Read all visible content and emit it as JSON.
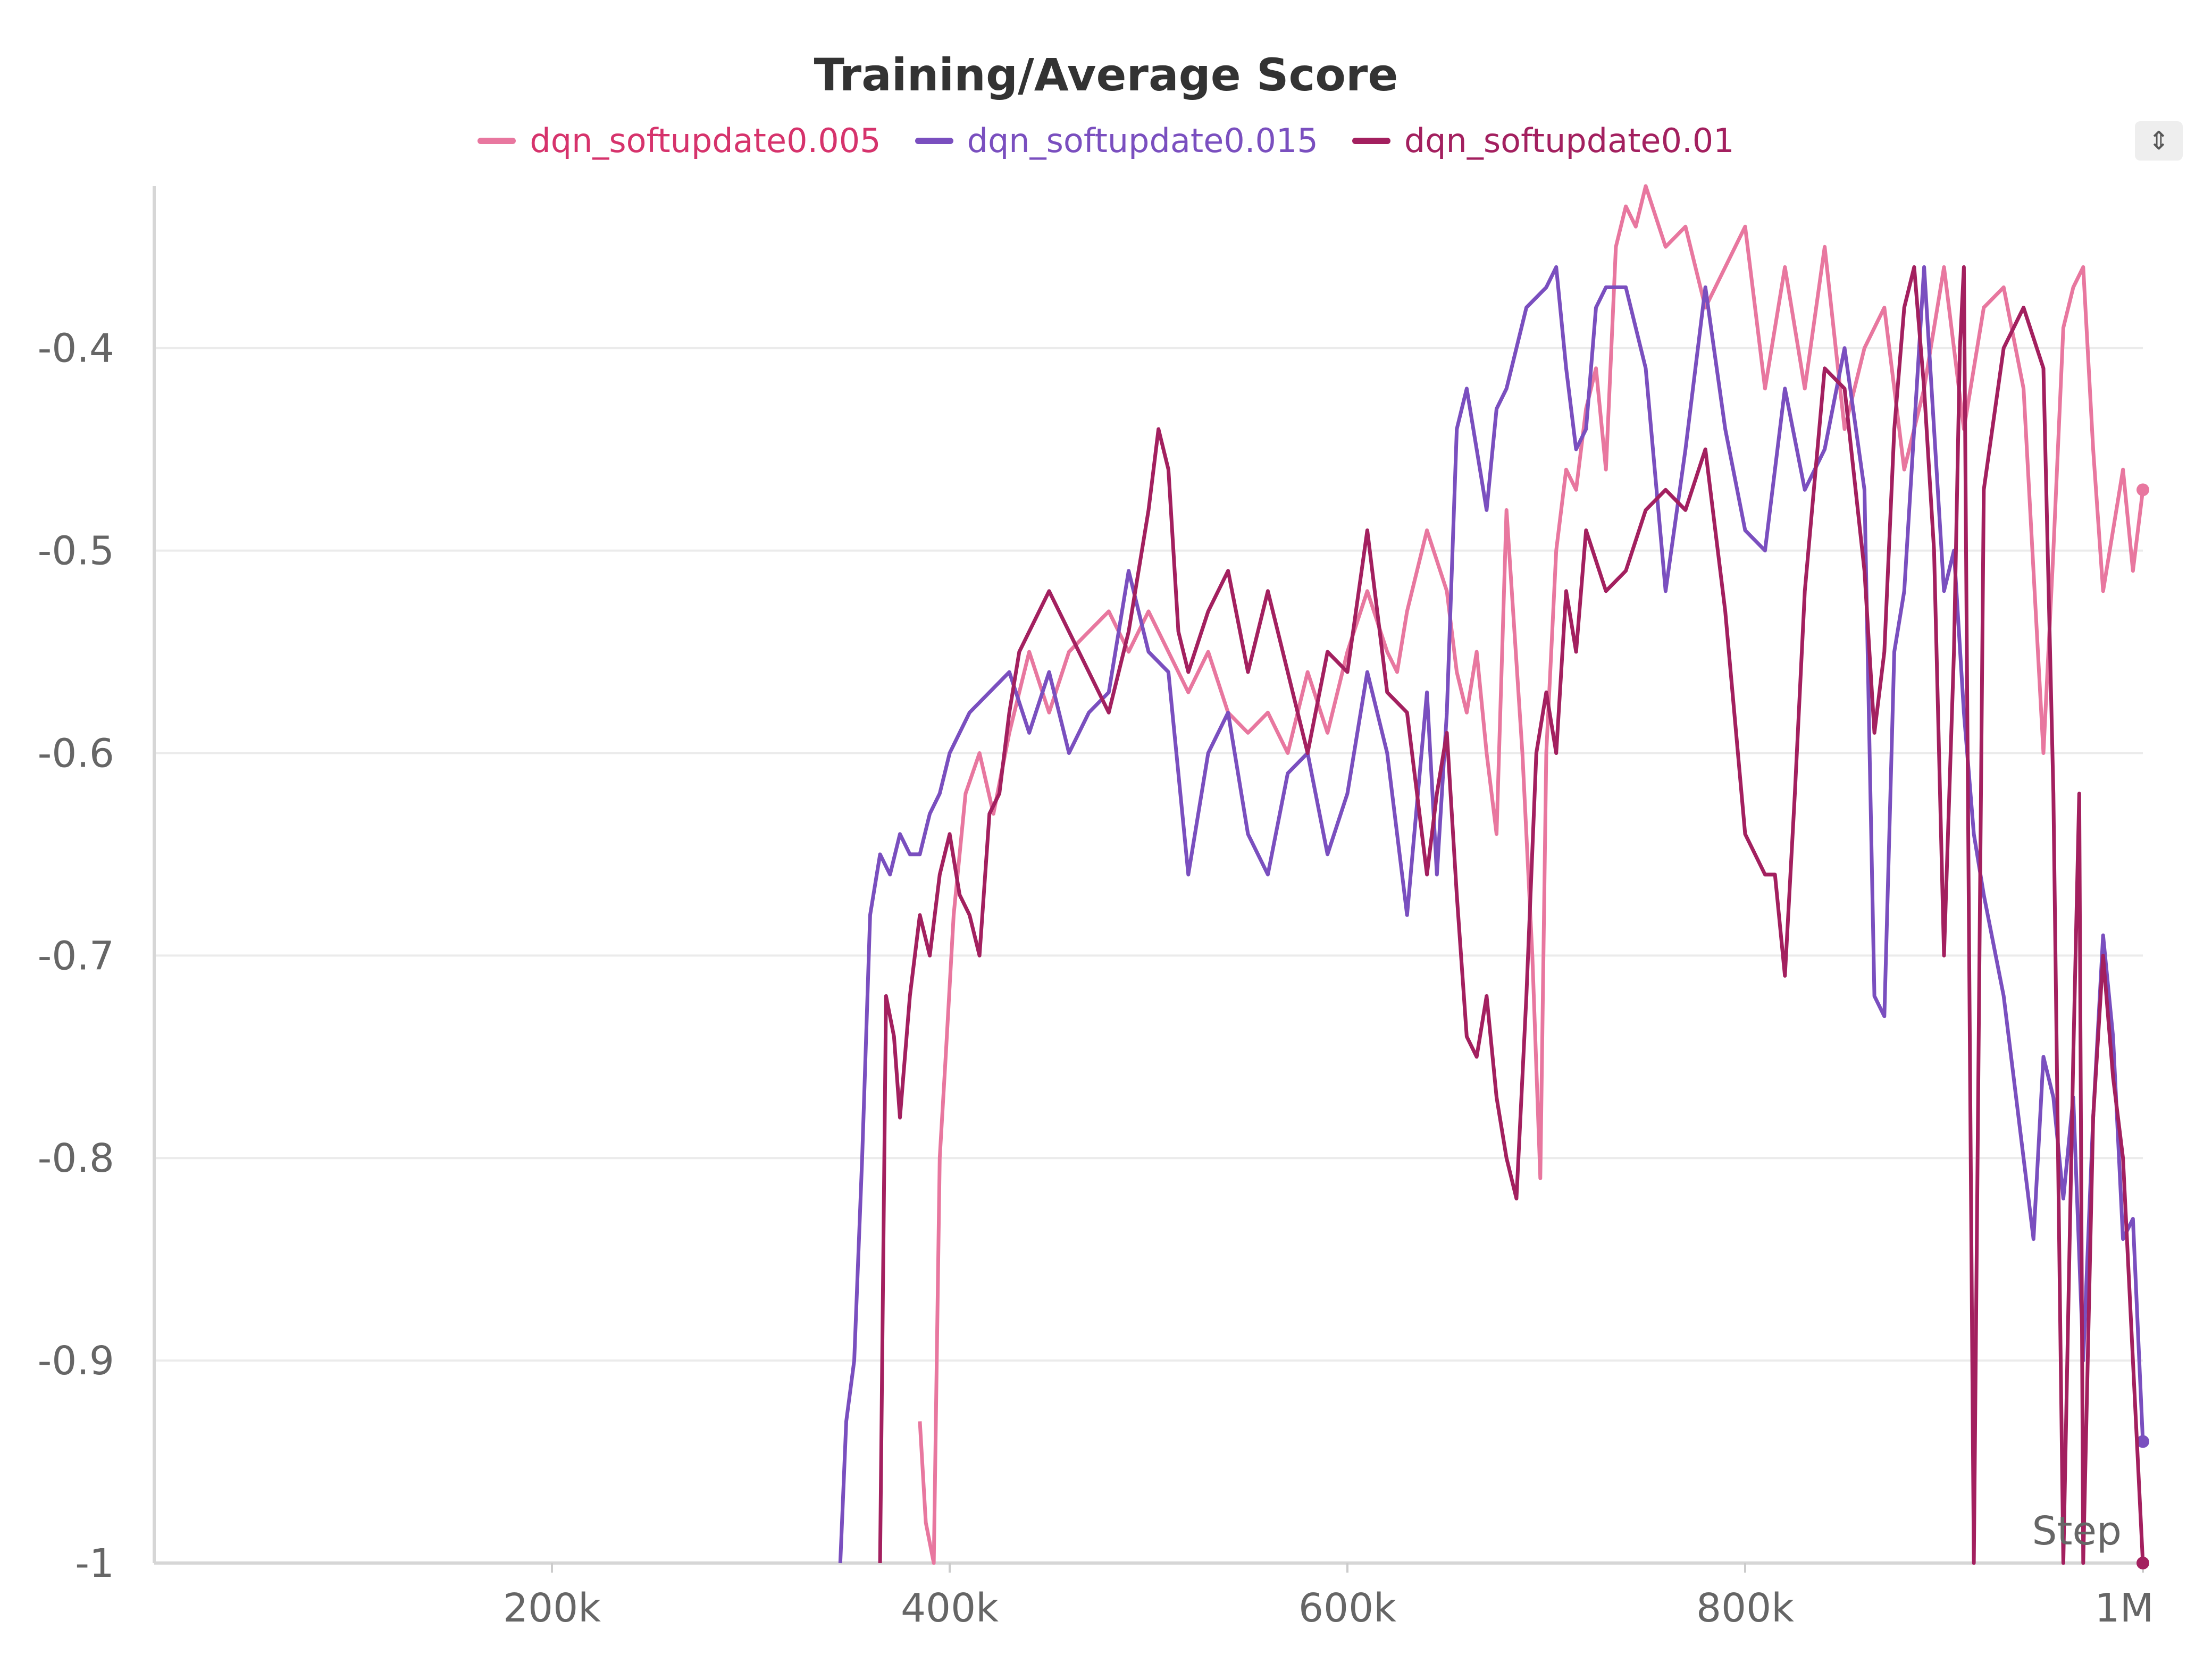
{
  "chart_data": {
    "type": "line",
    "title": "Training/Average Score",
    "xlabel": "Step",
    "ylabel": "",
    "xlim": [
      0,
      1000000
    ],
    "ylim": [
      -1,
      -0.32
    ],
    "x_ticks": [
      200000,
      400000,
      600000,
      800000,
      1000000
    ],
    "x_tick_labels": [
      "200k",
      "400k",
      "600k",
      "800k",
      "1M"
    ],
    "y_ticks": [
      -1,
      -0.9,
      -0.8,
      -0.7,
      -0.6,
      -0.5,
      -0.4
    ],
    "y_tick_labels": [
      "-1",
      "-0.9",
      "-0.8",
      "-0.7",
      "-0.6",
      "-0.5",
      "-0.4"
    ],
    "grid": true,
    "legend_position": "top-center",
    "series": [
      {
        "name": "dqn_softupdate0.005",
        "color": "#e8779f",
        "label_color": "#d6336c",
        "x": [
          385000,
          388000,
          392000,
          395000,
          398000,
          402000,
          408000,
          415000,
          422000,
          430000,
          440000,
          450000,
          460000,
          470000,
          480000,
          490000,
          500000,
          510000,
          520000,
          530000,
          540000,
          550000,
          560000,
          570000,
          580000,
          590000,
          600000,
          610000,
          620000,
          625000,
          630000,
          640000,
          650000,
          655000,
          660000,
          665000,
          670000,
          675000,
          680000,
          688000,
          693000,
          697000,
          700000,
          705000,
          710000,
          715000,
          720000,
          725000,
          730000,
          735000,
          740000,
          745000,
          750000,
          760000,
          770000,
          780000,
          790000,
          800000,
          810000,
          820000,
          830000,
          840000,
          850000,
          860000,
          870000,
          880000,
          890000,
          900000,
          910000,
          920000,
          930000,
          940000,
          950000,
          955000,
          960000,
          965000,
          970000,
          975000,
          980000,
          990000,
          995000,
          1000000
        ],
        "y": [
          -0.93,
          -0.98,
          -1.0,
          -0.8,
          -0.75,
          -0.68,
          -0.62,
          -0.6,
          -0.63,
          -0.59,
          -0.55,
          -0.58,
          -0.55,
          -0.54,
          -0.53,
          -0.55,
          -0.53,
          -0.55,
          -0.57,
          -0.55,
          -0.58,
          -0.59,
          -0.58,
          -0.6,
          -0.56,
          -0.59,
          -0.55,
          -0.52,
          -0.55,
          -0.56,
          -0.53,
          -0.49,
          -0.52,
          -0.56,
          -0.58,
          -0.55,
          -0.6,
          -0.64,
          -0.48,
          -0.6,
          -0.7,
          -0.81,
          -0.6,
          -0.5,
          -0.46,
          -0.47,
          -0.43,
          -0.41,
          -0.46,
          -0.35,
          -0.33,
          -0.34,
          -0.32,
          -0.35,
          -0.34,
          -0.38,
          -0.36,
          -0.34,
          -0.42,
          -0.36,
          -0.42,
          -0.35,
          -0.44,
          -0.4,
          -0.38,
          -0.46,
          -0.42,
          -0.36,
          -0.44,
          -0.38,
          -0.37,
          -0.42,
          -0.6,
          -0.5,
          -0.39,
          -0.37,
          -0.36,
          -0.45,
          -0.52,
          -0.46,
          -0.51,
          -0.47
        ]
      },
      {
        "name": "dqn_softupdate0.015",
        "color": "#7a4fbf",
        "label_color": "#7a4fbf",
        "x": [
          345000,
          348000,
          352000,
          356000,
          360000,
          365000,
          370000,
          375000,
          380000,
          385000,
          390000,
          395000,
          400000,
          410000,
          420000,
          430000,
          440000,
          450000,
          460000,
          470000,
          480000,
          490000,
          500000,
          510000,
          520000,
          530000,
          540000,
          550000,
          560000,
          570000,
          580000,
          590000,
          600000,
          610000,
          620000,
          630000,
          640000,
          645000,
          650000,
          655000,
          660000,
          665000,
          670000,
          675000,
          680000,
          690000,
          700000,
          705000,
          710000,
          715000,
          720000,
          725000,
          730000,
          740000,
          750000,
          760000,
          770000,
          780000,
          790000,
          800000,
          810000,
          820000,
          830000,
          840000,
          850000,
          860000,
          865000,
          870000,
          875000,
          880000,
          890000,
          900000,
          905000,
          910000,
          915000,
          920000,
          930000,
          940000,
          945000,
          950000,
          955000,
          960000,
          965000,
          970000,
          975000,
          980000,
          985000,
          990000,
          995000,
          1000000
        ],
        "y": [
          -1.0,
          -0.93,
          -0.9,
          -0.8,
          -0.68,
          -0.65,
          -0.66,
          -0.64,
          -0.65,
          -0.65,
          -0.63,
          -0.62,
          -0.6,
          -0.58,
          -0.57,
          -0.56,
          -0.59,
          -0.56,
          -0.6,
          -0.58,
          -0.57,
          -0.51,
          -0.55,
          -0.56,
          -0.66,
          -0.6,
          -0.58,
          -0.64,
          -0.66,
          -0.61,
          -0.6,
          -0.65,
          -0.62,
          -0.56,
          -0.6,
          -0.68,
          -0.57,
          -0.66,
          -0.58,
          -0.44,
          -0.42,
          -0.45,
          -0.48,
          -0.43,
          -0.42,
          -0.38,
          -0.37,
          -0.36,
          -0.41,
          -0.45,
          -0.44,
          -0.38,
          -0.37,
          -0.37,
          -0.41,
          -0.52,
          -0.45,
          -0.37,
          -0.44,
          -0.49,
          -0.5,
          -0.42,
          -0.47,
          -0.45,
          -0.4,
          -0.47,
          -0.72,
          -0.73,
          -0.55,
          -0.52,
          -0.36,
          -0.52,
          -0.5,
          -0.58,
          -0.64,
          -0.67,
          -0.72,
          -0.8,
          -0.84,
          -0.75,
          -0.77,
          -0.82,
          -0.77,
          -0.9,
          -0.78,
          -0.69,
          -0.74,
          -0.84,
          -0.83,
          -0.94
        ]
      },
      {
        "name": "dqn_softupdate0.01",
        "color": "#a3205f",
        "label_color": "#a3205f",
        "x": [
          365000,
          368000,
          372000,
          375000,
          380000,
          385000,
          390000,
          395000,
          400000,
          405000,
          410000,
          415000,
          420000,
          425000,
          430000,
          435000,
          440000,
          450000,
          460000,
          470000,
          480000,
          490000,
          500000,
          505000,
          510000,
          515000,
          520000,
          530000,
          540000,
          550000,
          560000,
          570000,
          580000,
          590000,
          600000,
          610000,
          620000,
          630000,
          640000,
          645000,
          650000,
          655000,
          660000,
          665000,
          670000,
          675000,
          680000,
          685000,
          690000,
          695000,
          700000,
          705000,
          710000,
          715000,
          720000,
          730000,
          740000,
          750000,
          760000,
          770000,
          780000,
          790000,
          800000,
          810000,
          815000,
          820000,
          825000,
          830000,
          840000,
          850000,
          860000,
          865000,
          870000,
          875000,
          880000,
          885000,
          890000,
          895000,
          900000,
          905000,
          908000,
          910000,
          915000,
          920000,
          930000,
          940000,
          950000,
          955000,
          960000,
          965000,
          968000,
          970000,
          975000,
          980000,
          985000,
          990000,
          995000,
          1000000
        ],
        "y": [
          -1.0,
          -0.72,
          -0.74,
          -0.78,
          -0.72,
          -0.68,
          -0.7,
          -0.66,
          -0.64,
          -0.67,
          -0.68,
          -0.7,
          -0.63,
          -0.62,
          -0.58,
          -0.55,
          -0.54,
          -0.52,
          -0.54,
          -0.56,
          -0.58,
          -0.54,
          -0.48,
          -0.44,
          -0.46,
          -0.54,
          -0.56,
          -0.53,
          -0.51,
          -0.56,
          -0.52,
          -0.56,
          -0.6,
          -0.55,
          -0.56,
          -0.49,
          -0.57,
          -0.58,
          -0.66,
          -0.62,
          -0.59,
          -0.67,
          -0.74,
          -0.75,
          -0.72,
          -0.77,
          -0.8,
          -0.82,
          -0.72,
          -0.6,
          -0.57,
          -0.6,
          -0.52,
          -0.55,
          -0.49,
          -0.52,
          -0.51,
          -0.48,
          -0.47,
          -0.48,
          -0.45,
          -0.53,
          -0.64,
          -0.66,
          -0.66,
          -0.71,
          -0.62,
          -0.52,
          -0.41,
          -0.42,
          -0.51,
          -0.59,
          -0.55,
          -0.44,
          -0.38,
          -0.36,
          -0.42,
          -0.5,
          -0.7,
          -0.55,
          -0.4,
          -0.36,
          -1.0,
          -0.47,
          -0.4,
          -0.38,
          -0.41,
          -0.62,
          -1.0,
          -0.75,
          -0.62,
          -1.0,
          -0.78,
          -0.7,
          -0.76,
          -0.8,
          -0.9,
          -1.0
        ]
      }
    ]
  },
  "ui": {
    "sort_icon": "sort-arrows-icon"
  }
}
